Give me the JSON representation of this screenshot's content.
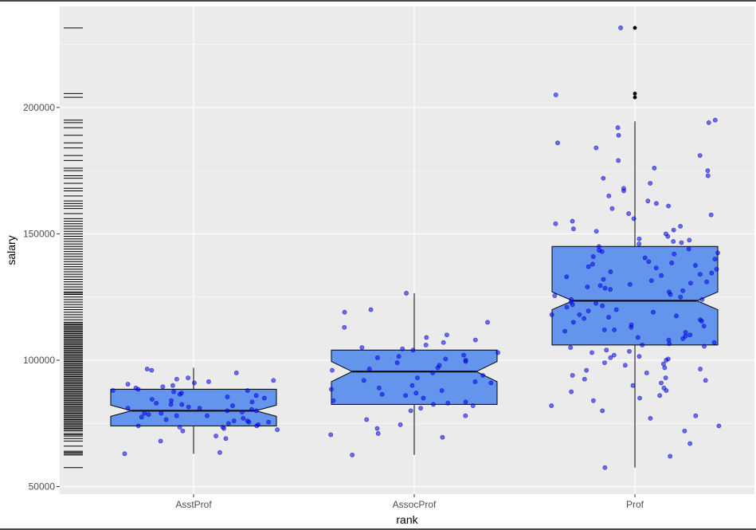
{
  "chart_data": {
    "type": "boxplot",
    "xlabel": "rank",
    "ylabel": "salary",
    "categories": [
      "AsstProf",
      "AssocProf",
      "Prof"
    ],
    "ylim": [
      47000,
      240000
    ],
    "yticks": [
      50000,
      100000,
      150000,
      200000
    ],
    "ytick_labels": [
      "50000",
      "100000",
      "150000",
      "200000"
    ],
    "grid": true,
    "notched": true,
    "box_fill": "#6495ed",
    "point_color": "#0000ff",
    "outlier_color": "#000000",
    "panel_background": "#ebebeb",
    "boxes": [
      {
        "category": "AsstProf",
        "whisker_low": 63000,
        "q1": 74000,
        "median": 80000,
        "q3": 88500,
        "whisker_high": 97000,
        "notch_low": 77800,
        "notch_high": 82200,
        "outliers": []
      },
      {
        "category": "AssocProf",
        "whisker_low": 62500,
        "q1": 82500,
        "median": 95500,
        "q3": 104000,
        "whisker_high": 126500,
        "notch_low": 91500,
        "notch_high": 99500,
        "outliers": []
      },
      {
        "category": "Prof",
        "whisker_low": 57500,
        "q1": 106000,
        "median": 123500,
        "q3": 145000,
        "whisker_high": 194500,
        "notch_low": 120000,
        "notch_high": 127000,
        "outliers": [
          204000,
          205500,
          231500
        ]
      }
    ],
    "jitter_points": [
      {
        "category": "AsstProf",
        "values": [
          63500,
          68000,
          70000,
          72500,
          73000,
          73500,
          74000,
          74500,
          75000,
          75500,
          76000,
          76500,
          77000,
          77500,
          78000,
          78500,
          79000,
          79500,
          80000,
          80500,
          81000,
          81500,
          82000,
          82500,
          83000,
          84000,
          85000,
          86000,
          86500,
          87000,
          88000,
          88500,
          89000,
          89500,
          90000,
          91000,
          92000,
          93000,
          95000,
          96500,
          72000,
          74000,
          76000,
          79000,
          81000,
          83500,
          85500,
          90500,
          91500,
          63000,
          69000,
          78000,
          80000,
          84500,
          87500,
          92500,
          73500,
          75500,
          82500,
          88000,
          96000
        ]
      },
      {
        "category": "AssocProf",
        "values": [
          62500,
          69500,
          70500,
          71000,
          73000,
          74500,
          76500,
          78000,
          80000,
          81000,
          82000,
          82500,
          83000,
          84000,
          85000,
          86000,
          87000,
          88000,
          89000,
          90000,
          91000,
          92000,
          93000,
          94000,
          95000,
          96000,
          97000,
          98000,
          99000,
          100000,
          100500,
          101000,
          102000,
          103000,
          104000,
          105000,
          106000,
          107000,
          108000,
          109000,
          110000,
          113000,
          115000,
          119000,
          120000,
          126500,
          83500,
          86500,
          91500,
          96500,
          99500,
          101500,
          104500,
          88500
        ]
      },
      {
        "category": "Prof",
        "values": [
          57500,
          62000,
          67000,
          72000,
          74000,
          77000,
          78000,
          80000,
          82000,
          84000,
          85000,
          86000,
          88000,
          89000,
          90000,
          91000,
          92000,
          93000,
          94000,
          95000,
          96000,
          97000,
          98000,
          99000,
          100000,
          101000,
          102000,
          103000,
          104000,
          105000,
          106000,
          107000,
          108000,
          109000,
          110000,
          111000,
          112000,
          113000,
          114000,
          115000,
          116000,
          117000,
          118000,
          119000,
          120000,
          121000,
          122000,
          123000,
          124000,
          125000,
          126000,
          127000,
          128000,
          129000,
          130000,
          131000,
          132000,
          133000,
          134000,
          135000,
          136000,
          137000,
          138000,
          139000,
          140000,
          141000,
          142000,
          143000,
          144000,
          145000,
          146000,
          147000,
          148000,
          149000,
          150000,
          151000,
          152000,
          153000,
          154000,
          155000,
          156000,
          158000,
          160000,
          161000,
          162000,
          163000,
          165000,
          167000,
          168000,
          170000,
          172000,
          173000,
          175000,
          176000,
          179000,
          181000,
          184000,
          186000,
          189000,
          192000,
          194000,
          195000,
          205000,
          231500,
          112000,
          118000,
          124000,
          129500,
          134500,
          138500,
          142500,
          108500,
          103500,
          98500,
          115500,
          121500,
          127500,
          131500,
          136500,
          140500,
          111500,
          105500,
          117500,
          125500,
          133500,
          143500,
          147500,
          151500,
          157500,
          101500,
          96500,
          92500,
          87500,
          119500,
          113500,
          109500,
          122500,
          128500,
          137500,
          146500,
          100500,
          106500,
          116500,
          130500
        ]
      }
    ],
    "rug_values": [
      57500,
      62500,
      63000,
      63500,
      64000,
      66000,
      68000,
      69000,
      70000,
      70500,
      71000,
      72000,
      72500,
      73000,
      73500,
      74000,
      74500,
      75000,
      75500,
      76000,
      76500,
      77000,
      77500,
      78000,
      78500,
      79000,
      79500,
      80000,
      80500,
      81000,
      81500,
      82000,
      82500,
      83000,
      83500,
      84000,
      84500,
      85000,
      85500,
      86000,
      86500,
      87000,
      87500,
      88000,
      88500,
      89000,
      89500,
      90000,
      90500,
      91000,
      91500,
      92000,
      92500,
      93000,
      93500,
      94000,
      94500,
      95000,
      95500,
      96000,
      96500,
      97000,
      97500,
      98000,
      98500,
      99000,
      99500,
      100000,
      100500,
      101000,
      101500,
      102000,
      102500,
      103000,
      103500,
      104000,
      104500,
      105000,
      105500,
      106000,
      106500,
      107000,
      107500,
      108000,
      108500,
      109000,
      109500,
      110000,
      110500,
      111000,
      111500,
      112000,
      112500,
      113000,
      113500,
      114000,
      114500,
      115000,
      116000,
      117000,
      118000,
      119000,
      120000,
      121000,
      122000,
      123000,
      124000,
      125000,
      126000,
      126500,
      127000,
      128000,
      129000,
      130000,
      131000,
      132000,
      133000,
      134000,
      135000,
      136000,
      137000,
      138000,
      139000,
      140000,
      141000,
      142000,
      143000,
      144000,
      145000,
      146000,
      147000,
      148000,
      149000,
      150000,
      151000,
      152000,
      153000,
      154000,
      155000,
      156000,
      158000,
      160000,
      161000,
      162000,
      163000,
      165000,
      167000,
      168000,
      170000,
      172000,
      173000,
      175000,
      176000,
      179000,
      181000,
      184000,
      186000,
      189000,
      192000,
      194000,
      195000,
      204000,
      205500,
      231500
    ]
  }
}
